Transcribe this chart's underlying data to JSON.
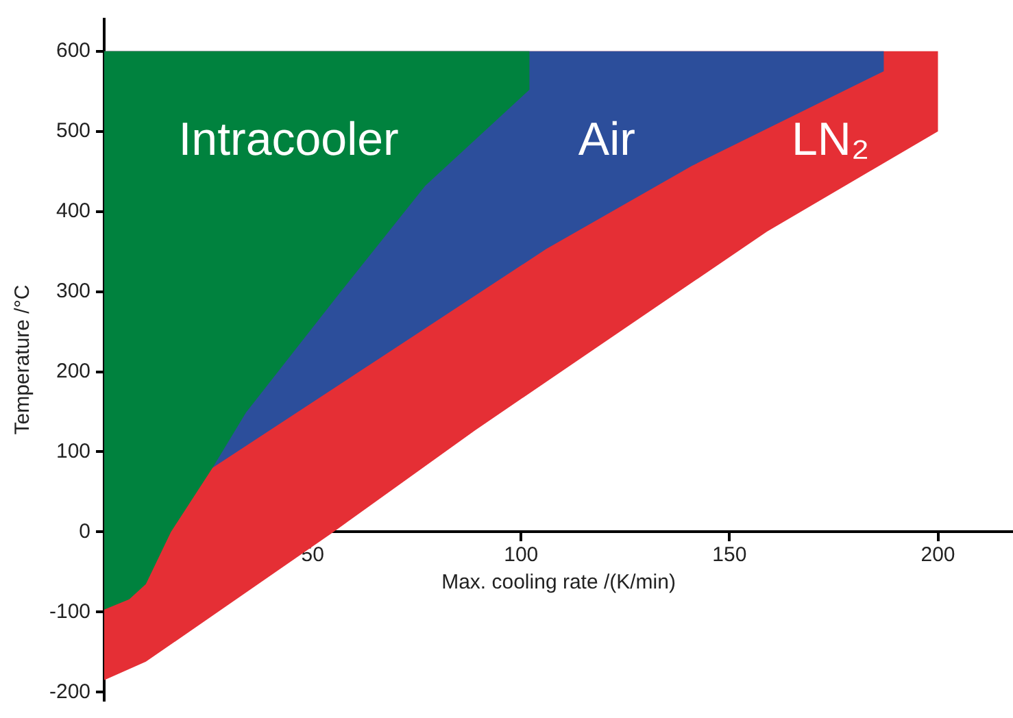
{
  "chart_data": {
    "type": "area",
    "xlabel": "Max. cooling rate /(K/min)",
    "ylabel": "Temperature /°C",
    "series": [
      {
        "name": "Intracooler",
        "color": "#00823e",
        "x": [
          0,
          0,
          6,
          10,
          16,
          26,
          34,
          56,
          77,
          102,
          102
        ],
        "values": [
          600,
          -97,
          -84,
          -65,
          0,
          80,
          149,
          295,
          432,
          552,
          600
        ]
      },
      {
        "name": "Air",
        "color": "#2c4e9b",
        "x": [
          0,
          0,
          26,
          106,
          141,
          187,
          187
        ],
        "values": [
          600,
          80,
          80,
          353,
          457,
          575,
          600
        ]
      },
      {
        "name": "LN₂",
        "color": "#e52f35",
        "x": [
          0,
          0,
          10,
          55,
          89,
          159,
          200,
          200
        ],
        "values": [
          600,
          -185,
          -162,
          0,
          127,
          375,
          500,
          600
        ]
      }
    ],
    "xlim": [
      0,
      218
    ],
    "ylim": [
      -210,
      640
    ],
    "xticks": [
      50,
      100,
      150,
      200
    ],
    "yticks": [
      -200,
      -100,
      0,
      100,
      200,
      300,
      400,
      500,
      600
    ],
    "grid": false,
    "legend": false
  }
}
